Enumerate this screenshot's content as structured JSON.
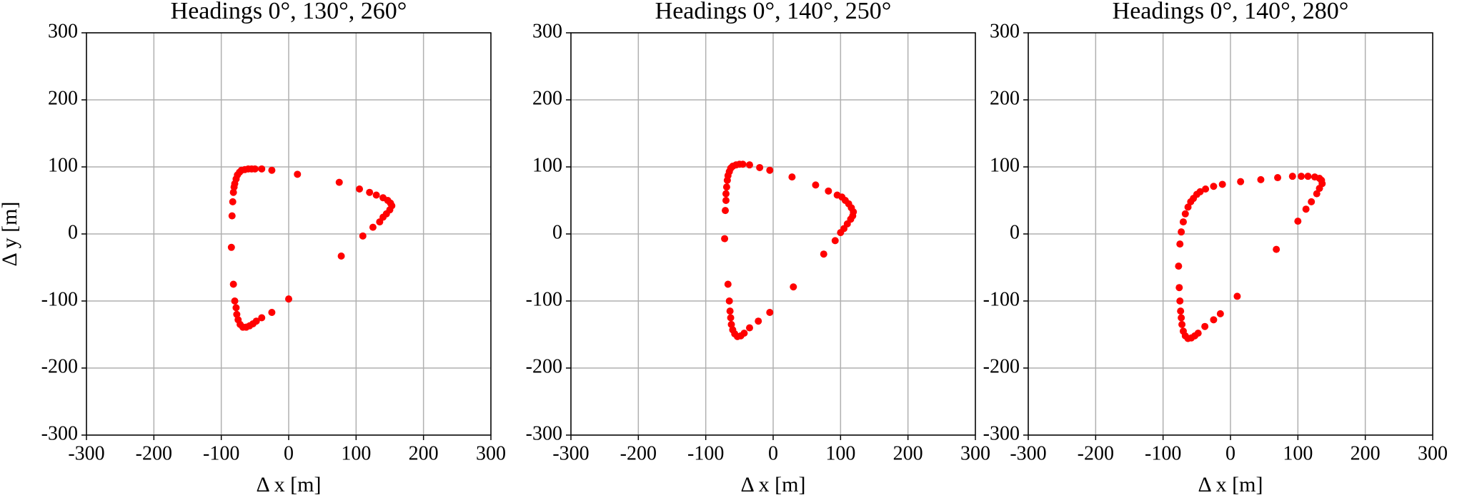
{
  "chart_data": [
    {
      "type": "scatter",
      "title": "Headings 0°, 130°, 260°",
      "xlabel": "Δ x [m]",
      "ylabel": "Δ y [m]",
      "color": "#ff0000",
      "grid": true,
      "xlim": [
        -300,
        300
      ],
      "ylim": [
        -300,
        300
      ],
      "xticks": [
        -300,
        -200,
        -100,
        0,
        100,
        200,
        300
      ],
      "yticks": [
        -300,
        -200,
        -100,
        0,
        100,
        200,
        300
      ],
      "x": [
        -50,
        -55,
        -60,
        -65,
        -70,
        -73,
        -76,
        -78,
        -80,
        -81,
        -82,
        -83,
        -84,
        -85,
        -82,
        -80,
        -78,
        -77,
        -75,
        -72,
        -68,
        -63,
        -58,
        -53,
        -48,
        -40,
        -25,
        0,
        -40,
        -25,
        13,
        75,
        105,
        120,
        130,
        140,
        147,
        151,
        153,
        150,
        145,
        140,
        135,
        125,
        110,
        78
      ],
      "y": [
        97,
        97,
        97,
        96,
        95,
        92,
        88,
        82,
        75,
        70,
        62,
        48,
        27,
        -20,
        -75,
        -100,
        -110,
        -120,
        -128,
        -135,
        -139,
        -139,
        -137,
        -134,
        -130,
        -125,
        -117,
        -97,
        97,
        95,
        89,
        77,
        67,
        62,
        58,
        54,
        50,
        46,
        42,
        36,
        30,
        25,
        18,
        10,
        -3,
        -33
      ]
    },
    {
      "type": "scatter",
      "title": "Headings 0°, 140°, 250°",
      "xlabel": "Δ x [m]",
      "color": "#ff0000",
      "grid": true,
      "xlim": [
        -300,
        300
      ],
      "ylim": [
        -300,
        300
      ],
      "xticks": [
        -300,
        -200,
        -100,
        0,
        100,
        200,
        300
      ],
      "yticks": [
        -300,
        -200,
        -100,
        0,
        100,
        200,
        300
      ],
      "x": [
        -45,
        -50,
        -55,
        -60,
        -63,
        -65,
        -67,
        -68,
        -69,
        -70,
        -70,
        -71,
        -72,
        -67,
        -65,
        -64,
        -63,
        -62,
        -60,
        -57,
        -53,
        -48,
        -43,
        -35,
        -22,
        -5,
        30,
        -35,
        -20,
        -5,
        28,
        63,
        82,
        95,
        102,
        107,
        112,
        116,
        119,
        118,
        115,
        110,
        105,
        100,
        92,
        75
      ],
      "y": [
        104,
        104,
        103,
        101,
        98,
        93,
        87,
        80,
        70,
        60,
        50,
        35,
        -7,
        -75,
        -100,
        -115,
        -125,
        -135,
        -143,
        -149,
        -153,
        -152,
        -148,
        -140,
        -130,
        -117,
        -79,
        103,
        99,
        95,
        85,
        73,
        64,
        58,
        55,
        50,
        45,
        39,
        33,
        27,
        22,
        15,
        8,
        2,
        -10,
        -30
      ]
    },
    {
      "type": "scatter",
      "title": "Headings 0°, 140°, 280°",
      "xlabel": "Δ x [m]",
      "color": "#ff0000",
      "grid": true,
      "xlim": [
        -300,
        300
      ],
      "ylim": [
        -300,
        300
      ],
      "xticks": [
        -300,
        -200,
        -100,
        0,
        100,
        200,
        300
      ],
      "yticks": [
        -300,
        -200,
        -100,
        0,
        100,
        200,
        300
      ],
      "x": [
        -73,
        -70,
        -67,
        -63,
        -59,
        -55,
        -50,
        -45,
        -37,
        -25,
        -12,
        15,
        45,
        70,
        92,
        105,
        115,
        125,
        132,
        135,
        136,
        132,
        128,
        120,
        112,
        100,
        68,
        -75,
        -77,
        -76,
        -75,
        -74,
        -73,
        -72,
        -70,
        -67,
        -63,
        -58,
        -53,
        -48,
        -38,
        -25,
        -15,
        10
      ],
      "y": [
        3,
        18,
        30,
        40,
        48,
        53,
        59,
        63,
        67,
        71,
        74,
        78,
        81,
        84,
        86,
        86,
        86,
        85,
        83,
        80,
        75,
        68,
        60,
        48,
        37,
        19,
        -23,
        -15,
        -48,
        -80,
        -100,
        -115,
        -125,
        -135,
        -145,
        -152,
        -156,
        -155,
        -152,
        -148,
        -138,
        -128,
        -119,
        -93
      ]
    }
  ]
}
